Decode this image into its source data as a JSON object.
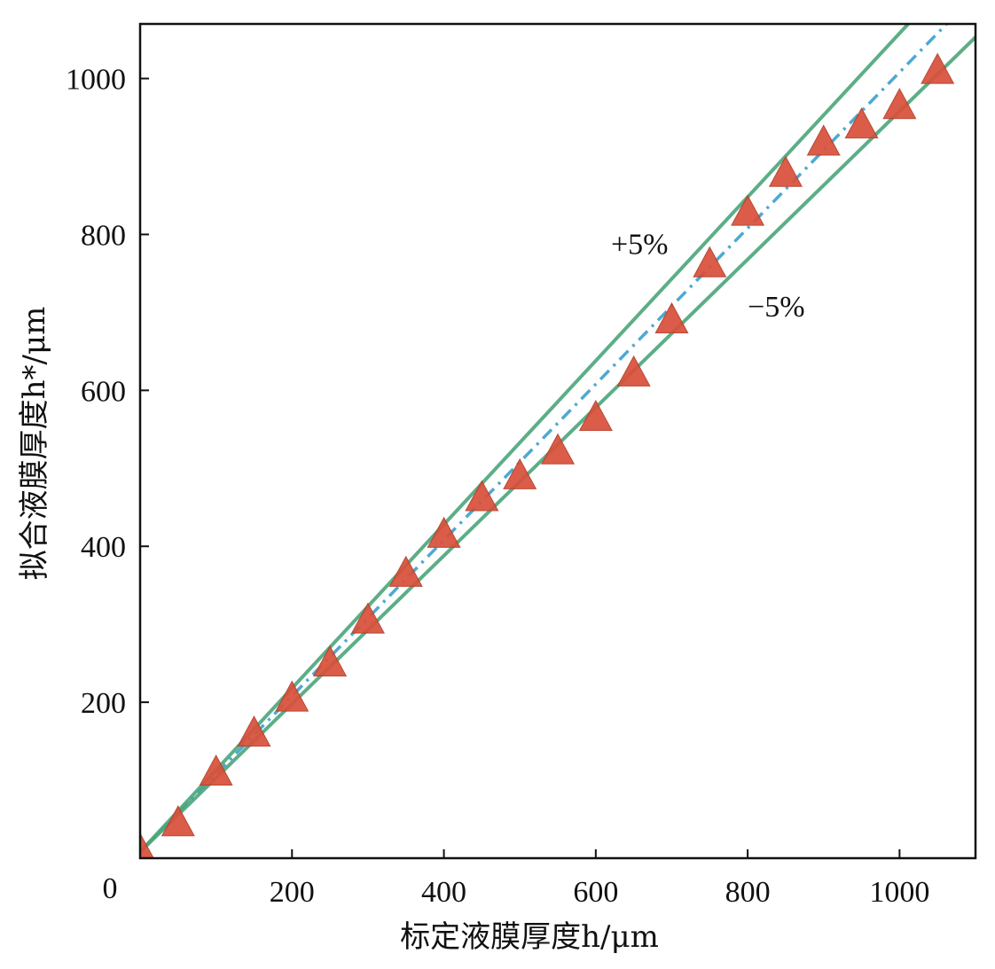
{
  "chart_data": {
    "type": "scatter",
    "xlabel": "标定液膜厚度h/μm",
    "ylabel": "拟合液膜厚度h*/μm",
    "origin_label": "0",
    "xlim": [
      0,
      1100
    ],
    "ylim": [
      0,
      1070
    ],
    "x_ticks": [
      200,
      400,
      600,
      800,
      1000
    ],
    "y_ticks": [
      200,
      400,
      600,
      800,
      1000
    ],
    "grid": false,
    "annotations": [
      {
        "text": "+5%",
        "x": 620,
        "y": 775
      },
      {
        "text": "−5%",
        "x": 800,
        "y": 695
      }
    ],
    "series": [
      {
        "type": "scatter",
        "marker": "triangle",
        "color": "#d9503a",
        "points": [
          [
            0,
            10
          ],
          [
            50,
            45
          ],
          [
            100,
            110
          ],
          [
            150,
            160
          ],
          [
            200,
            205
          ],
          [
            250,
            250
          ],
          [
            300,
            305
          ],
          [
            350,
            365
          ],
          [
            400,
            415
          ],
          [
            450,
            462
          ],
          [
            500,
            490
          ],
          [
            550,
            522
          ],
          [
            600,
            565
          ],
          [
            650,
            622
          ],
          [
            700,
            690
          ],
          [
            750,
            762
          ],
          [
            800,
            828
          ],
          [
            850,
            878
          ],
          [
            900,
            918
          ],
          [
            950,
            940
          ],
          [
            1000,
            965
          ],
          [
            1050,
            1010
          ]
        ]
      },
      {
        "type": "line",
        "style": "dash-dot",
        "color": "#3aa0cc",
        "slope": 1.0
      },
      {
        "type": "line",
        "style": "solid",
        "color": "#4aa57a",
        "slope": 1.05
      },
      {
        "type": "line",
        "style": "solid",
        "color": "#4aa57a",
        "slope": 0.95
      }
    ],
    "colors": {
      "marker": "#d9503a",
      "band": "#4aa57a",
      "fit": "#3aa0cc",
      "axis": "#111111"
    }
  }
}
